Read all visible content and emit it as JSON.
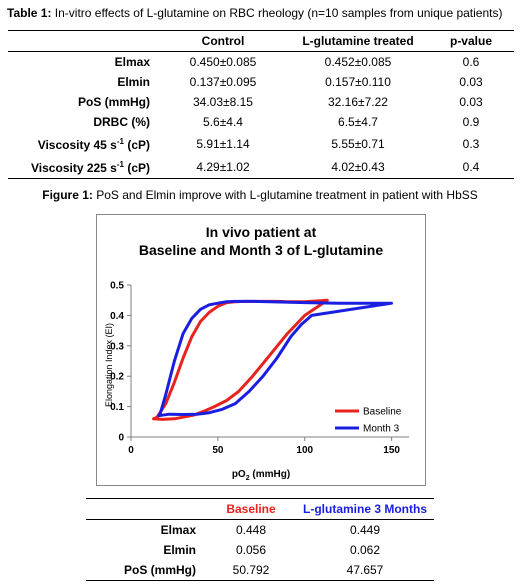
{
  "table1": {
    "caption_bold": "Table 1:",
    "caption_text": " In-vitro effects of L-glutamine on RBC rheology (n=10 samples from unique patients)",
    "headers": [
      "",
      "Control",
      "L-glutamine treated",
      "p-value"
    ],
    "rows": [
      {
        "label": "Elmax",
        "control": "0.450±0.085",
        "treated": "0.452±0.085",
        "p": "0.6"
      },
      {
        "label": "Elmin",
        "control": "0.137±0.095",
        "treated": "0.157±0.110",
        "p": "0.03"
      },
      {
        "label": "PoS (mmHg)",
        "control": "34.03±8.15",
        "treated": "32.16±7.22",
        "p": "0.03"
      },
      {
        "label": "DRBC (%)",
        "control": "5.6±4.4",
        "treated": "6.5±4.7",
        "p": "0.9"
      },
      {
        "label": "Viscosity 45 s-1 (cP)",
        "label_main": "Viscosity 45 s",
        "label_sup": "-1",
        "label_tail": " (cP)",
        "control": "5.91±1.14",
        "treated": "5.55±0.71",
        "p": "0.3"
      },
      {
        "label": "Viscosity 225 s-1 (cP)",
        "label_main": "Viscosity 225 s",
        "label_sup": "-1",
        "label_tail": " (cP)",
        "control": "4.29±1.02",
        "treated": "4.02±0.43",
        "p": "0.4"
      }
    ]
  },
  "figure1": {
    "caption_bold": "Figure 1:",
    "caption_text": " PoS and Elmin improve with L-glutamine treatment in patient with HbSS"
  },
  "chart_data": {
    "type": "line",
    "title_line1": "In vivo patient at",
    "title_line2": "Baseline and Month 3 of L-glutamine",
    "xlabel_main": "pO",
    "xlabel_sub": "2",
    "xlabel_tail": " (mmHg)",
    "ylabel": "Elongation Index (EI)",
    "xlim": [
      0,
      160
    ],
    "ylim": [
      0,
      0.5
    ],
    "xticks": [
      0,
      50,
      100,
      150
    ],
    "yticks": [
      0,
      0.1,
      0.2,
      0.3,
      0.4,
      0.5
    ],
    "ytick_labels": [
      "0",
      "0.1",
      "0.2",
      "0.3",
      "0.4",
      "0.5"
    ],
    "legend_position": "bottom-right",
    "series": [
      {
        "name": "Baseline",
        "color": "#e8221d",
        "x": [
          13,
          18,
          25,
          30,
          36,
          42,
          48,
          55,
          62,
          70,
          80,
          90,
          100,
          113,
          100,
          90,
          85,
          80,
          75,
          70,
          65,
          60,
          55,
          50,
          45,
          40,
          35,
          30,
          25,
          20,
          15,
          13
        ],
        "y": [
          0.06,
          0.058,
          0.06,
          0.065,
          0.072,
          0.085,
          0.1,
          0.12,
          0.15,
          0.2,
          0.27,
          0.34,
          0.4,
          0.45,
          0.445,
          0.445,
          0.446,
          0.446,
          0.446,
          0.446,
          0.446,
          0.445,
          0.442,
          0.43,
          0.41,
          0.38,
          0.33,
          0.26,
          0.18,
          0.11,
          0.065,
          0.06
        ]
      },
      {
        "name": "Month 3",
        "color": "#1a1ee0",
        "x": [
          16,
          22,
          30,
          38,
          45,
          52,
          60,
          68,
          76,
          84,
          92,
          98,
          104,
          150,
          140,
          120,
          100,
          80,
          70,
          60,
          55,
          50,
          45,
          40,
          35,
          30,
          25,
          20,
          17,
          16
        ],
        "y": [
          0.07,
          0.075,
          0.074,
          0.075,
          0.08,
          0.09,
          0.11,
          0.15,
          0.2,
          0.26,
          0.33,
          0.37,
          0.4,
          0.44,
          0.44,
          0.44,
          0.442,
          0.445,
          0.446,
          0.446,
          0.445,
          0.44,
          0.435,
          0.42,
          0.39,
          0.34,
          0.25,
          0.14,
          0.08,
          0.07
        ]
      }
    ]
  },
  "table2": {
    "headers": [
      "",
      "Baseline",
      "L-glutamine 3 Months"
    ],
    "rows": [
      {
        "label": "Elmax",
        "baseline": "0.448",
        "month3": "0.449"
      },
      {
        "label": "Elmin",
        "baseline": "0.056",
        "month3": "0.062"
      },
      {
        "label": "PoS (mmHg)",
        "baseline": "50.792",
        "month3": "47.657"
      }
    ]
  }
}
